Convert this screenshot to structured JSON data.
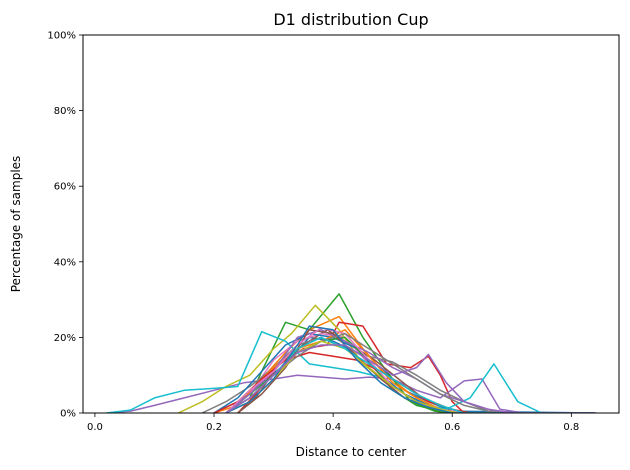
{
  "chart_data": {
    "type": "line",
    "title": "D1 distribution Cup",
    "xlabel": "Distance to center",
    "ylabel": "Percentage of samples",
    "xlim": [
      -0.02,
      0.88
    ],
    "ylim": [
      0,
      100
    ],
    "xticks": [
      0.0,
      0.2,
      0.4,
      0.6,
      0.8
    ],
    "xtick_labels": [
      "0.0",
      "0.2",
      "0.4",
      "0.6",
      "0.8"
    ],
    "yticks": [
      0,
      20,
      40,
      60,
      80,
      100
    ],
    "ytick_labels": [
      "0%",
      "20%",
      "40%",
      "60%",
      "80%",
      "100%"
    ],
    "grid": false,
    "legend": "none",
    "series": [
      {
        "color": "#1f77b4",
        "points": [
          [
            0.2,
            0
          ],
          [
            0.24,
            3
          ],
          [
            0.28,
            8
          ],
          [
            0.32,
            13
          ],
          [
            0.36,
            20
          ],
          [
            0.4,
            19
          ],
          [
            0.44,
            16
          ],
          [
            0.48,
            12
          ],
          [
            0.52,
            6
          ],
          [
            0.56,
            3
          ],
          [
            0.6,
            0.5
          ],
          [
            0.84,
            0
          ]
        ]
      },
      {
        "color": "#ff7f0e",
        "points": [
          [
            0.2,
            0
          ],
          [
            0.24,
            2
          ],
          [
            0.28,
            9
          ],
          [
            0.32,
            16
          ],
          [
            0.36,
            22
          ],
          [
            0.41,
            25.5
          ],
          [
            0.45,
            17
          ],
          [
            0.49,
            10
          ],
          [
            0.53,
            5
          ],
          [
            0.57,
            1.5
          ],
          [
            0.61,
            0
          ],
          [
            0.84,
            0
          ]
        ]
      },
      {
        "color": "#2ca02c",
        "points": [
          [
            0.22,
            0
          ],
          [
            0.26,
            4
          ],
          [
            0.28,
            11
          ],
          [
            0.32,
            24
          ],
          [
            0.36,
            22
          ],
          [
            0.41,
            31.5
          ],
          [
            0.45,
            20
          ],
          [
            0.49,
            11
          ],
          [
            0.53,
            3
          ],
          [
            0.57,
            0.5
          ],
          [
            0.6,
            0
          ],
          [
            0.84,
            0
          ]
        ]
      },
      {
        "color": "#d62728",
        "points": [
          [
            0.24,
            0
          ],
          [
            0.27,
            5
          ],
          [
            0.31,
            13
          ],
          [
            0.35,
            17
          ],
          [
            0.39,
            18
          ],
          [
            0.41,
            24
          ],
          [
            0.45,
            23
          ],
          [
            0.49,
            13
          ],
          [
            0.53,
            12
          ],
          [
            0.56,
            15
          ],
          [
            0.58,
            10
          ],
          [
            0.6,
            3
          ],
          [
            0.62,
            0
          ],
          [
            0.84,
            0
          ]
        ]
      },
      {
        "color": "#9467bd",
        "points": [
          [
            0.02,
            0
          ],
          [
            0.06,
            0.5
          ],
          [
            0.1,
            2
          ],
          [
            0.15,
            4
          ],
          [
            0.2,
            6
          ],
          [
            0.25,
            8
          ],
          [
            0.3,
            9
          ],
          [
            0.34,
            10
          ],
          [
            0.38,
            9.5
          ],
          [
            0.42,
            9
          ],
          [
            0.46,
            9.5
          ],
          [
            0.5,
            9
          ],
          [
            0.54,
            6
          ],
          [
            0.58,
            4
          ],
          [
            0.62,
            8.5
          ],
          [
            0.65,
            9
          ],
          [
            0.68,
            1
          ],
          [
            0.72,
            0
          ],
          [
            0.84,
            0
          ]
        ]
      },
      {
        "color": "#8c564b",
        "points": [
          [
            0.24,
            0
          ],
          [
            0.27,
            4
          ],
          [
            0.31,
            13
          ],
          [
            0.35,
            18
          ],
          [
            0.39,
            22
          ],
          [
            0.43,
            18
          ],
          [
            0.47,
            14
          ],
          [
            0.51,
            9
          ],
          [
            0.55,
            4
          ],
          [
            0.59,
            1.5
          ],
          [
            0.62,
            0
          ],
          [
            0.84,
            0
          ]
        ]
      },
      {
        "color": "#e377c2",
        "points": [
          [
            0.22,
            0
          ],
          [
            0.26,
            5
          ],
          [
            0.3,
            14
          ],
          [
            0.34,
            19
          ],
          [
            0.38,
            21
          ],
          [
            0.42,
            20
          ],
          [
            0.46,
            13
          ],
          [
            0.5,
            7
          ],
          [
            0.54,
            3
          ],
          [
            0.58,
            1
          ],
          [
            0.61,
            0
          ],
          [
            0.84,
            0
          ]
        ]
      },
      {
        "color": "#7f7f7f",
        "points": [
          [
            0.18,
            0
          ],
          [
            0.22,
            3
          ],
          [
            0.26,
            7
          ],
          [
            0.3,
            12
          ],
          [
            0.34,
            18
          ],
          [
            0.38,
            20
          ],
          [
            0.42,
            17
          ],
          [
            0.46,
            15
          ],
          [
            0.5,
            13.5
          ],
          [
            0.54,
            10
          ],
          [
            0.58,
            6
          ],
          [
            0.62,
            3
          ],
          [
            0.66,
            0.5
          ],
          [
            0.7,
            0
          ],
          [
            0.84,
            0
          ]
        ]
      },
      {
        "color": "#bcbd22",
        "points": [
          [
            0.14,
            0
          ],
          [
            0.18,
            3
          ],
          [
            0.22,
            7
          ],
          [
            0.26,
            10
          ],
          [
            0.3,
            17
          ],
          [
            0.33,
            21
          ],
          [
            0.37,
            28.5
          ],
          [
            0.41,
            22
          ],
          [
            0.45,
            13
          ],
          [
            0.49,
            8
          ],
          [
            0.53,
            4
          ],
          [
            0.57,
            1
          ],
          [
            0.6,
            0
          ],
          [
            0.84,
            0
          ]
        ]
      },
      {
        "color": "#17becf",
        "points": [
          [
            0.02,
            0
          ],
          [
            0.06,
            0.8
          ],
          [
            0.1,
            4
          ],
          [
            0.15,
            6
          ],
          [
            0.2,
            6.5
          ],
          [
            0.24,
            7
          ],
          [
            0.28,
            21.5
          ],
          [
            0.32,
            19
          ],
          [
            0.36,
            13
          ],
          [
            0.4,
            12
          ],
          [
            0.44,
            11
          ],
          [
            0.48,
            9.5
          ],
          [
            0.52,
            5
          ],
          [
            0.56,
            2
          ],
          [
            0.59,
            1
          ],
          [
            0.63,
            4
          ],
          [
            0.67,
            13
          ],
          [
            0.71,
            3
          ],
          [
            0.75,
            0
          ],
          [
            0.84,
            0
          ]
        ]
      },
      {
        "color": "#1f77b4",
        "points": [
          [
            0.2,
            0
          ],
          [
            0.24,
            4
          ],
          [
            0.28,
            11
          ],
          [
            0.32,
            18
          ],
          [
            0.36,
            21
          ],
          [
            0.4,
            20
          ],
          [
            0.44,
            17
          ],
          [
            0.48,
            10
          ],
          [
            0.52,
            5
          ],
          [
            0.56,
            2
          ],
          [
            0.6,
            0
          ],
          [
            0.84,
            0
          ]
        ]
      },
      {
        "color": "#ff7f0e",
        "points": [
          [
            0.22,
            0
          ],
          [
            0.26,
            6
          ],
          [
            0.3,
            12
          ],
          [
            0.34,
            17
          ],
          [
            0.38,
            19
          ],
          [
            0.42,
            22
          ],
          [
            0.46,
            15
          ],
          [
            0.5,
            8
          ],
          [
            0.54,
            4
          ],
          [
            0.58,
            1
          ],
          [
            0.61,
            0
          ],
          [
            0.84,
            0
          ]
        ]
      },
      {
        "color": "#2ca02c",
        "points": [
          [
            0.22,
            0
          ],
          [
            0.26,
            5
          ],
          [
            0.3,
            10
          ],
          [
            0.34,
            16
          ],
          [
            0.38,
            19
          ],
          [
            0.42,
            20
          ],
          [
            0.46,
            14
          ],
          [
            0.5,
            6
          ],
          [
            0.54,
            2
          ],
          [
            0.58,
            0.5
          ],
          [
            0.6,
            0
          ],
          [
            0.84,
            0
          ]
        ]
      },
      {
        "color": "#d62728",
        "points": [
          [
            0.2,
            0
          ],
          [
            0.24,
            3
          ],
          [
            0.28,
            9
          ],
          [
            0.32,
            14
          ],
          [
            0.36,
            16
          ],
          [
            0.4,
            15
          ],
          [
            0.44,
            14
          ],
          [
            0.48,
            11
          ],
          [
            0.52,
            7
          ],
          [
            0.56,
            3
          ],
          [
            0.6,
            1
          ],
          [
            0.63,
            0
          ],
          [
            0.84,
            0
          ]
        ]
      },
      {
        "color": "#9467bd",
        "points": [
          [
            0.22,
            0
          ],
          [
            0.26,
            5
          ],
          [
            0.3,
            11
          ],
          [
            0.34,
            20
          ],
          [
            0.38,
            22
          ],
          [
            0.42,
            19
          ],
          [
            0.46,
            16
          ],
          [
            0.5,
            12
          ],
          [
            0.54,
            9
          ],
          [
            0.58,
            5
          ],
          [
            0.62,
            3
          ],
          [
            0.66,
            1
          ],
          [
            0.7,
            0
          ],
          [
            0.84,
            0
          ]
        ]
      },
      {
        "color": "#8c564b",
        "points": [
          [
            0.24,
            0
          ],
          [
            0.28,
            5
          ],
          [
            0.32,
            12
          ],
          [
            0.36,
            22
          ],
          [
            0.4,
            21
          ],
          [
            0.44,
            15
          ],
          [
            0.48,
            9
          ],
          [
            0.52,
            4
          ],
          [
            0.56,
            1.5
          ],
          [
            0.6,
            0
          ],
          [
            0.84,
            0
          ]
        ]
      },
      {
        "color": "#e377c2",
        "points": [
          [
            0.22,
            0
          ],
          [
            0.26,
            6
          ],
          [
            0.3,
            11
          ],
          [
            0.34,
            18
          ],
          [
            0.38,
            22.5
          ],
          [
            0.42,
            21
          ],
          [
            0.46,
            14
          ],
          [
            0.5,
            7
          ],
          [
            0.54,
            3
          ],
          [
            0.58,
            1
          ],
          [
            0.62,
            0
          ],
          [
            0.84,
            0
          ]
        ]
      },
      {
        "color": "#7f7f7f",
        "points": [
          [
            0.22,
            0
          ],
          [
            0.26,
            4
          ],
          [
            0.3,
            10
          ],
          [
            0.34,
            15
          ],
          [
            0.38,
            19
          ],
          [
            0.42,
            21
          ],
          [
            0.46,
            17
          ],
          [
            0.5,
            13
          ],
          [
            0.54,
            9
          ],
          [
            0.58,
            5
          ],
          [
            0.62,
            2
          ],
          [
            0.66,
            0.5
          ],
          [
            0.7,
            0
          ],
          [
            0.84,
            0
          ]
        ]
      },
      {
        "color": "#bcbd22",
        "points": [
          [
            0.22,
            0
          ],
          [
            0.26,
            3
          ],
          [
            0.3,
            9
          ],
          [
            0.34,
            16
          ],
          [
            0.38,
            19
          ],
          [
            0.42,
            17
          ],
          [
            0.46,
            12
          ],
          [
            0.5,
            7
          ],
          [
            0.54,
            3
          ],
          [
            0.58,
            1
          ],
          [
            0.61,
            0
          ],
          [
            0.84,
            0
          ]
        ]
      },
      {
        "color": "#17becf",
        "points": [
          [
            0.22,
            0
          ],
          [
            0.26,
            4
          ],
          [
            0.3,
            10
          ],
          [
            0.34,
            17
          ],
          [
            0.38,
            20
          ],
          [
            0.42,
            17
          ],
          [
            0.46,
            13
          ],
          [
            0.5,
            9
          ],
          [
            0.54,
            5
          ],
          [
            0.58,
            2
          ],
          [
            0.62,
            0
          ],
          [
            0.84,
            0
          ]
        ]
      },
      {
        "color": "#1f77b4",
        "points": [
          [
            0.22,
            0
          ],
          [
            0.26,
            3
          ],
          [
            0.3,
            9
          ],
          [
            0.34,
            18
          ],
          [
            0.36,
            23
          ],
          [
            0.4,
            22
          ],
          [
            0.44,
            14
          ],
          [
            0.48,
            8
          ],
          [
            0.52,
            4
          ],
          [
            0.56,
            1.5
          ],
          [
            0.6,
            0
          ],
          [
            0.84,
            0
          ]
        ]
      },
      {
        "color": "#9467bd",
        "points": [
          [
            0.22,
            0
          ],
          [
            0.26,
            4
          ],
          [
            0.3,
            10
          ],
          [
            0.34,
            16
          ],
          [
            0.38,
            18
          ],
          [
            0.42,
            18
          ],
          [
            0.46,
            14
          ],
          [
            0.5,
            10
          ],
          [
            0.54,
            12
          ],
          [
            0.56,
            15.5
          ],
          [
            0.59,
            8
          ],
          [
            0.62,
            3
          ],
          [
            0.66,
            1
          ],
          [
            0.7,
            0
          ],
          [
            0.84,
            0
          ]
        ]
      }
    ]
  }
}
